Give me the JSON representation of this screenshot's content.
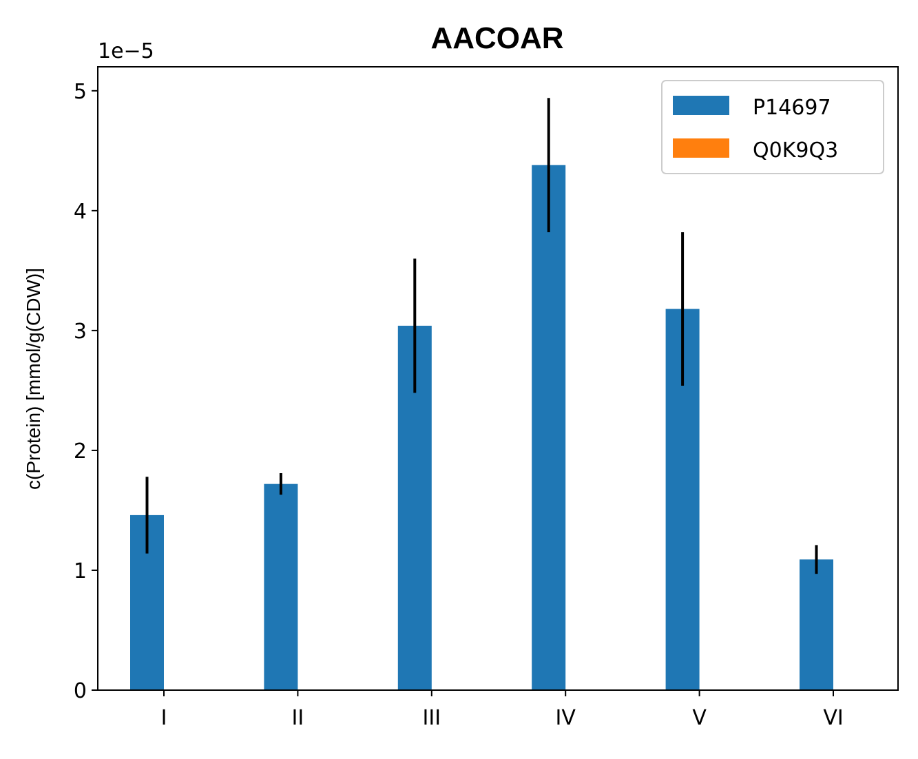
{
  "chart_data": {
    "type": "bar",
    "title": "AACOAR",
    "ylabel": "c(Protein) [mmol/g(CDW)]",
    "xlabel": "",
    "y_offset_label": "1e−5",
    "y_scale": 1e-05,
    "ylim": [
      0,
      5.2e-05
    ],
    "yticks": [
      0,
      1e-05,
      2e-05,
      3e-05,
      4e-05,
      5e-05
    ],
    "ytick_labels": [
      "0",
      "1",
      "2",
      "3",
      "4",
      "5"
    ],
    "categories": [
      "I",
      "II",
      "III",
      "IV",
      "V",
      "VI"
    ],
    "series": [
      {
        "name": "P14697",
        "color": "#1f77b4",
        "values": [
          1.46e-05,
          1.72e-05,
          3.04e-05,
          4.38e-05,
          3.18e-05,
          1.09e-05
        ],
        "errors": [
          3.2e-06,
          9e-07,
          5.6e-06,
          5.6e-06,
          6.4e-06,
          1.2e-06
        ]
      },
      {
        "name": "Q0K9Q3",
        "color": "#ff7f0e",
        "values": [
          0,
          0,
          0,
          0,
          2e-08,
          0
        ],
        "errors": [
          0,
          0,
          0,
          0,
          0,
          0
        ]
      }
    ],
    "error_bar_color": "#000000",
    "legend_position": "top-right",
    "grid": false
  }
}
